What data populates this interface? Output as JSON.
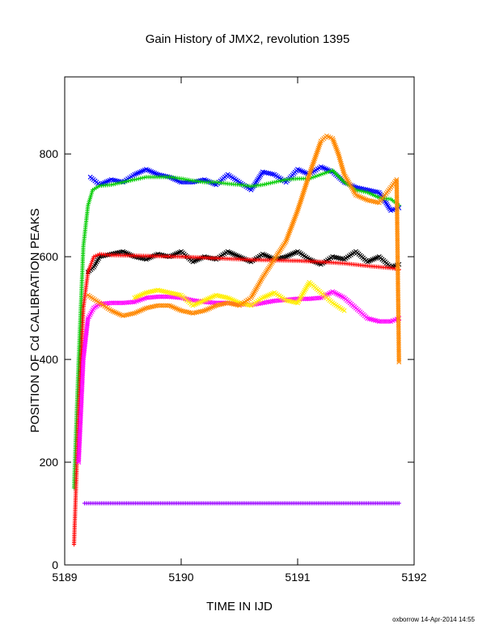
{
  "chart_data": {
    "type": "scatter",
    "title": "Gain History of JMX2, revolution 1395",
    "xlabel": "TIME IN IJD",
    "ylabel": "POSITION OF Cd CALIBRATION PEAKS",
    "xlim": [
      5189,
      5192
    ],
    "ylim": [
      0,
      950
    ],
    "x_ticks": [
      5189,
      5190,
      5191,
      5192
    ],
    "x_tick_labels": [
      "5189",
      "5190",
      "5191",
      "5192"
    ],
    "y_ticks": [
      0,
      200,
      400,
      600,
      800
    ],
    "y_tick_labels": [
      "0",
      "200",
      "400",
      "600",
      "800"
    ],
    "grid": false,
    "legend": "none",
    "series": [
      {
        "color": "#0000ff",
        "marker": "x",
        "x": [
          5189.22,
          5189.3,
          5189.4,
          5189.5,
          5189.6,
          5189.7,
          5189.8,
          5189.9,
          5190.0,
          5190.1,
          5190.2,
          5190.3,
          5190.4,
          5190.5,
          5190.6,
          5190.7,
          5190.8,
          5190.9,
          5191.0,
          5191.1,
          5191.2,
          5191.3,
          5191.4,
          5191.5,
          5191.6,
          5191.7,
          5191.8,
          5191.87
        ],
        "y": [
          755,
          740,
          750,
          745,
          760,
          770,
          760,
          755,
          745,
          745,
          750,
          740,
          760,
          745,
          730,
          765,
          760,
          745,
          770,
          760,
          775,
          765,
          745,
          735,
          730,
          725,
          690,
          695
        ]
      },
      {
        "color": "#00cc00",
        "marker": "+",
        "x": [
          5189.08,
          5189.12,
          5189.16,
          5189.2,
          5189.24,
          5189.3,
          5189.4,
          5189.5,
          5189.6,
          5189.7,
          5189.8,
          5189.9,
          5190.0,
          5190.1,
          5190.2,
          5190.3,
          5190.4,
          5190.5,
          5190.6,
          5190.7,
          5190.8,
          5190.9,
          5191.0,
          5191.1,
          5191.2,
          5191.3,
          5191.4,
          5191.5,
          5191.6,
          5191.7,
          5191.8,
          5191.87
        ],
        "y": [
          150,
          400,
          620,
          700,
          730,
          738,
          740,
          745,
          750,
          755,
          755,
          755,
          752,
          748,
          745,
          745,
          742,
          740,
          737,
          740,
          745,
          750,
          752,
          752,
          760,
          768,
          745,
          730,
          725,
          715,
          712,
          700
        ]
      },
      {
        "color": "#000000",
        "marker": "x",
        "x": [
          5189.2,
          5189.25,
          5189.3,
          5189.4,
          5189.5,
          5189.6,
          5189.7,
          5189.8,
          5189.9,
          5190.0,
          5190.1,
          5190.2,
          5190.3,
          5190.4,
          5190.5,
          5190.6,
          5190.7,
          5190.8,
          5190.9,
          5191.0,
          5191.1,
          5191.2,
          5191.3,
          5191.4,
          5191.5,
          5191.6,
          5191.7,
          5191.8,
          5191.87
        ],
        "y": [
          570,
          580,
          600,
          605,
          610,
          600,
          595,
          605,
          600,
          610,
          590,
          600,
          595,
          610,
          600,
          590,
          605,
          595,
          600,
          610,
          595,
          585,
          600,
          595,
          610,
          590,
          600,
          580,
          585
        ]
      },
      {
        "color": "#ff0000",
        "marker": "+",
        "x": [
          5189.08,
          5189.12,
          5189.16,
          5189.2,
          5189.25,
          5189.3,
          5189.4,
          5189.6,
          5189.8,
          5190.0,
          5190.2,
          5190.4,
          5190.6,
          5190.8,
          5191.0,
          5191.2,
          5191.4,
          5191.6,
          5191.8,
          5191.87
        ],
        "y": [
          40,
          300,
          500,
          570,
          600,
          605,
          603,
          602,
          601,
          600,
          598,
          596,
          594,
          593,
          592,
          590,
          587,
          582,
          578,
          575
        ]
      },
      {
        "color": "#ff00ff",
        "marker": "x",
        "x": [
          5189.12,
          5189.16,
          5189.2,
          5189.25,
          5189.3,
          5189.4,
          5189.5,
          5189.6,
          5189.7,
          5189.8,
          5189.9,
          5190.0,
          5190.1,
          5190.2,
          5190.3,
          5190.4,
          5190.5,
          5190.6,
          5190.7,
          5190.8,
          5190.9,
          5191.0,
          5191.1,
          5191.2,
          5191.3,
          5191.4,
          5191.5,
          5191.6,
          5191.7,
          5191.8,
          5191.87
        ],
        "y": [
          200,
          400,
          480,
          500,
          508,
          510,
          510,
          512,
          520,
          522,
          522,
          520,
          515,
          512,
          510,
          510,
          508,
          506,
          510,
          514,
          516,
          518,
          518,
          520,
          532,
          520,
          500,
          480,
          474,
          474,
          480
        ]
      },
      {
        "color": "#ffee00",
        "marker": "x",
        "x": [
          5189.6,
          5189.7,
          5189.8,
          5189.9,
          5190.0,
          5190.1,
          5190.2,
          5190.3,
          5190.4,
          5190.5,
          5190.6,
          5190.7,
          5190.8,
          5190.9,
          5191.0,
          5191.1,
          5191.2,
          5191.3,
          5191.4
        ],
        "y": [
          520,
          530,
          535,
          530,
          525,
          505,
          515,
          525,
          520,
          510,
          505,
          520,
          530,
          515,
          510,
          550,
          530,
          510,
          495
        ]
      },
      {
        "color": "#ff8800",
        "marker": "x",
        "x": [
          5189.2,
          5189.3,
          5189.4,
          5189.5,
          5189.6,
          5189.7,
          5189.8,
          5189.9,
          5190.0,
          5190.1,
          5190.2,
          5190.3,
          5190.4,
          5190.5,
          5190.6,
          5190.7,
          5190.8,
          5190.9,
          5191.0,
          5191.1,
          5191.2,
          5191.25,
          5191.3,
          5191.35,
          5191.4,
          5191.5,
          5191.6,
          5191.7,
          5191.8,
          5191.85,
          5191.87
        ],
        "y": [
          525,
          510,
          495,
          485,
          490,
          500,
          505,
          505,
          495,
          490,
          495,
          505,
          510,
          505,
          520,
          560,
          595,
          630,
          690,
          760,
          825,
          835,
          830,
          800,
          760,
          720,
          710,
          705,
          735,
          750,
          395
        ]
      },
      {
        "color": "#9900ff",
        "marker": "+",
        "x": [
          5189.17,
          5189.3,
          5189.5,
          5189.7,
          5189.9,
          5190.1,
          5190.3,
          5190.5,
          5190.7,
          5190.9,
          5191.1,
          5191.3,
          5191.5,
          5191.7,
          5191.87
        ],
        "y": [
          120,
          120,
          120,
          120,
          120,
          120,
          120,
          120,
          120,
          120,
          120,
          120,
          120,
          120,
          120
        ]
      }
    ],
    "footer": "oxborrow 14-Apr-2014 14:55"
  }
}
